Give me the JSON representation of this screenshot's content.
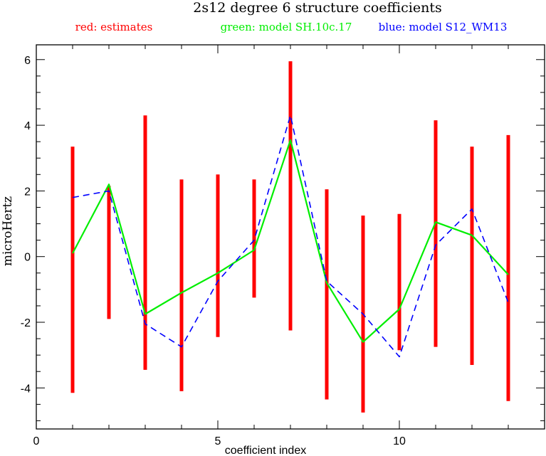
{
  "chart_data": {
    "type": "line",
    "title": "2s12 degree 6 structure coefficients",
    "xlabel": "coefficient index",
    "ylabel": "microHertz",
    "xlim": [
      0,
      14
    ],
    "ylim": [
      -5.25,
      6.45
    ],
    "x_major_ticks": [
      0,
      5,
      10
    ],
    "x_minor_step": 1,
    "y_major_ticks": [
      -4,
      -2,
      0,
      2,
      4,
      6
    ],
    "y_minor_step": 0.5,
    "x_tick_labels": [
      "0",
      "5",
      "10"
    ],
    "y_tick_labels": [
      "-4",
      "-2",
      "0",
      "2",
      "4",
      "6"
    ],
    "grid": false,
    "legend_position": "top",
    "legend": [
      {
        "label": "red: estimates",
        "color": "#ff0000"
      },
      {
        "label": "green: model SH.10c.17",
        "color": "#00ee00"
      },
      {
        "label": "blue: model S12_WM13",
        "color": "#0000ff"
      }
    ],
    "series": [
      {
        "kind": "errorbar",
        "color": "#ff0000",
        "x": [
          1,
          2,
          3,
          4,
          5,
          6,
          7,
          8,
          9,
          10,
          11,
          12,
          13
        ],
        "low": [
          -4.15,
          -1.9,
          -3.45,
          -4.1,
          -2.45,
          -1.25,
          -2.25,
          -4.35,
          -4.75,
          -2.85,
          -2.75,
          -3.3,
          -4.4
        ],
        "high": [
          3.35,
          2.15,
          4.3,
          2.35,
          2.5,
          2.35,
          5.95,
          2.05,
          1.25,
          1.3,
          4.15,
          3.35,
          3.7
        ]
      },
      {
        "kind": "line",
        "color": "#00ee00",
        "dash": "solid",
        "x": [
          1,
          2,
          3,
          4,
          5,
          6,
          7,
          8,
          9,
          10,
          11,
          12,
          13
        ],
        "values": [
          0.1,
          2.2,
          -1.75,
          -1.1,
          -0.5,
          0.2,
          3.55,
          -0.8,
          -2.6,
          -1.6,
          1.05,
          0.65,
          -0.55
        ]
      },
      {
        "kind": "line",
        "color": "#0000ff",
        "dash": "dashed",
        "x": [
          1,
          2,
          3,
          4,
          5,
          6,
          7,
          8,
          9,
          10,
          11,
          12,
          13
        ],
        "values": [
          1.8,
          2.0,
          -2.05,
          -2.75,
          -0.75,
          0.5,
          4.3,
          -0.75,
          -1.75,
          -3.05,
          0.35,
          1.45,
          -1.4
        ]
      }
    ]
  }
}
